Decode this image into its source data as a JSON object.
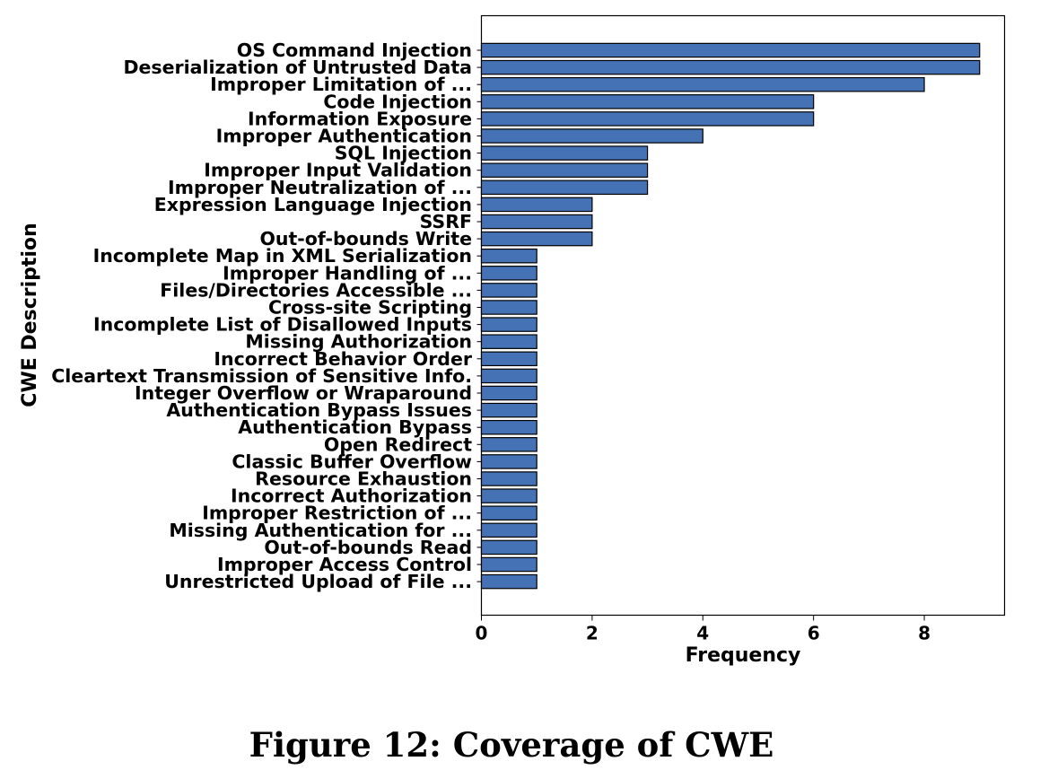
{
  "figure": {
    "caption": "Figure 12: Coverage of CWE"
  },
  "chart_data": {
    "type": "bar",
    "orientation": "horizontal",
    "categories": [
      "OS Command Injection",
      "Deserialization of Untrusted Data",
      "Improper Limitation of ...",
      "Code Injection",
      "Information Exposure",
      "Improper Authentication",
      "SQL Injection",
      "Improper Input Validation",
      "Improper Neutralization of ...",
      "Expression Language Injection",
      "SSRF",
      "Out-of-bounds Write",
      "Incomplete Map in XML Serialization",
      "Improper Handling of ...",
      "Files/Directories Accessible ...",
      "Cross-site Scripting",
      "Incomplete List of Disallowed Inputs",
      "Missing Authorization",
      "Incorrect Behavior Order",
      "Cleartext Transmission of Sensitive Info.",
      "Integer Overflow or Wraparound",
      "Authentication Bypass Issues",
      "Authentication Bypass",
      "Open Redirect",
      "Classic Buffer Overflow",
      "Resource Exhaustion",
      "Incorrect Authorization",
      "Improper Restriction of ...",
      "Missing Authentication for ...",
      "Out-of-bounds Read",
      "Improper Access Control",
      "Unrestricted Upload of File ..."
    ],
    "values": [
      9,
      9,
      8,
      6,
      6,
      4,
      3,
      3,
      3,
      2,
      2,
      2,
      1,
      1,
      1,
      1,
      1,
      1,
      1,
      1,
      1,
      1,
      1,
      1,
      1,
      1,
      1,
      1,
      1,
      1,
      1,
      1
    ],
    "xlabel": "Frequency",
    "ylabel": "CWE Description",
    "xlim": [
      0,
      9.45
    ],
    "xticks": [
      0,
      2,
      4,
      6,
      8
    ],
    "bar_color": "#4472b4",
    "bar_edge_color": "#000000",
    "grid": false
  }
}
